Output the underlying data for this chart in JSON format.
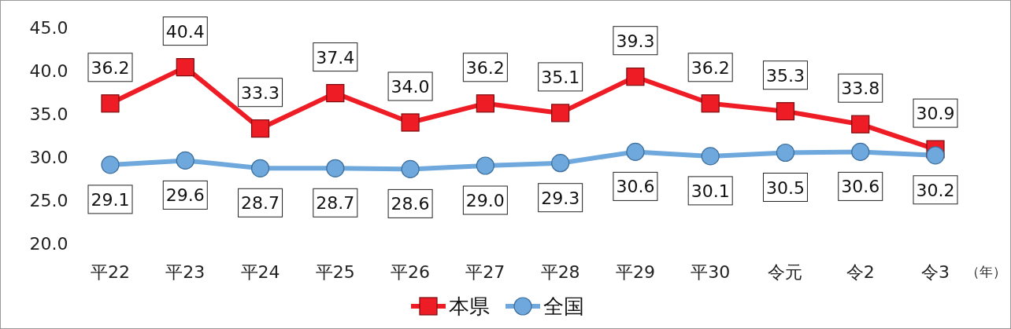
{
  "chart_data": {
    "type": "line",
    "categories": [
      "平22",
      "平23",
      "平24",
      "平25",
      "平26",
      "平27",
      "平28",
      "平29",
      "平30",
      "令元",
      "令2",
      "令3"
    ],
    "xlabel": "（年）",
    "ylim": [
      20,
      45
    ],
    "yticks": [
      {
        "value": 20,
        "label": "20.0"
      },
      {
        "value": 25,
        "label": "25.0"
      },
      {
        "value": 30,
        "label": "30.0"
      },
      {
        "value": 35,
        "label": "35.0"
      },
      {
        "value": 40,
        "label": "40.0"
      },
      {
        "value": 45,
        "label": "45.0"
      }
    ],
    "grid": false,
    "legend": "bottom",
    "series": [
      {
        "name": "本県",
        "color": "#ee1c25",
        "marker": "square",
        "values": [
          36.2,
          40.4,
          33.3,
          37.4,
          34.0,
          36.2,
          35.1,
          39.3,
          36.2,
          35.3,
          33.8,
          30.9
        ],
        "value_labels": [
          "36.2",
          "40.4",
          "33.3",
          "37.4",
          "34.0",
          "36.2",
          "35.1",
          "39.3",
          "36.2",
          "35.3",
          "33.8",
          "30.9"
        ]
      },
      {
        "name": "全国",
        "color": "#6fa8dc",
        "marker": "circle",
        "values": [
          29.1,
          29.6,
          28.7,
          28.7,
          28.6,
          29.0,
          29.3,
          30.6,
          30.1,
          30.5,
          30.6,
          30.2
        ],
        "value_labels": [
          "29.1",
          "29.6",
          "28.7",
          "28.7",
          "28.6",
          "29.0",
          "29.3",
          "30.6",
          "30.1",
          "30.5",
          "30.6",
          "30.2"
        ]
      }
    ]
  }
}
